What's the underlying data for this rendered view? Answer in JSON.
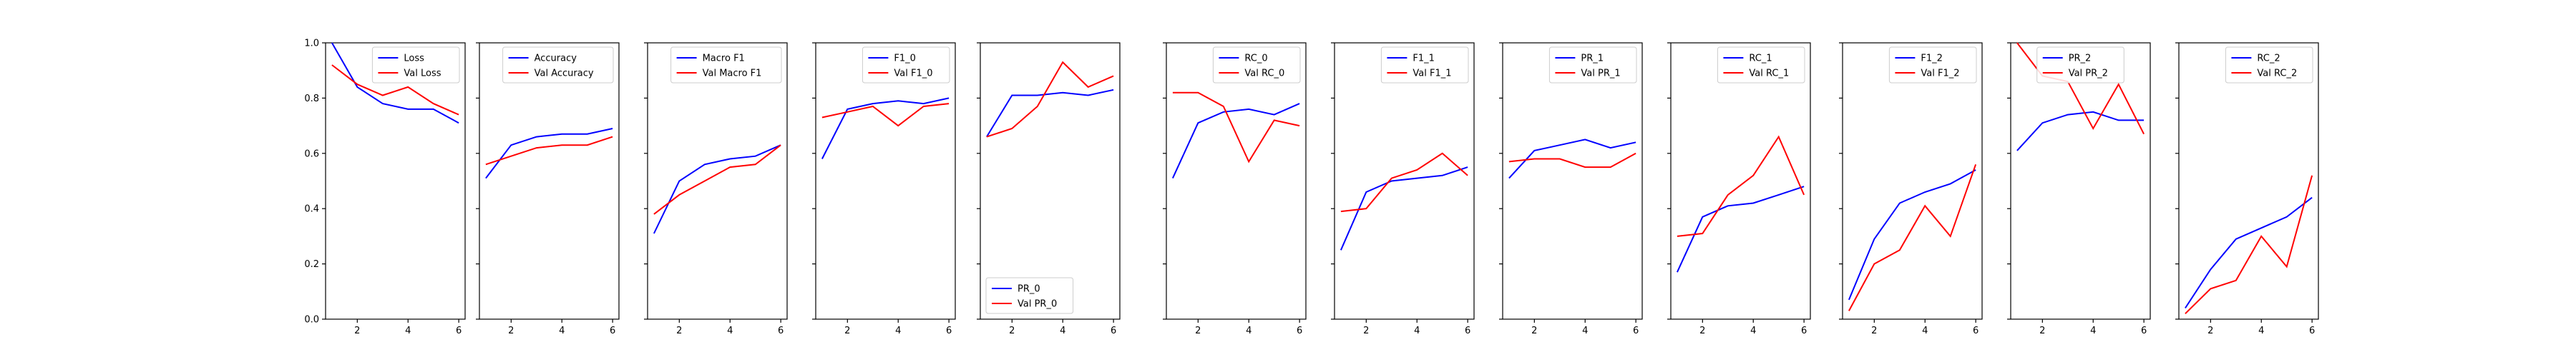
{
  "colors": {
    "train": "#0000ff",
    "val": "#ff0000"
  },
  "chart_data": [
    {
      "type": "line",
      "x": [
        1,
        2,
        3,
        4,
        5,
        6
      ],
      "xticks": [
        2,
        4,
        6
      ],
      "ylim": [
        0,
        1
      ],
      "yticks": [
        "0.0",
        "0.2",
        "0.4",
        "0.6",
        "0.8",
        "1.0"
      ],
      "show_yticks": true,
      "legend_position": "top-right",
      "series": [
        {
          "name": "Loss",
          "values": [
            1.0,
            0.84,
            0.78,
            0.76,
            0.76,
            0.71
          ]
        },
        {
          "name": "Val Loss",
          "values": [
            0.92,
            0.85,
            0.81,
            0.84,
            0.78,
            0.74
          ]
        }
      ]
    },
    {
      "type": "line",
      "x": [
        1,
        2,
        3,
        4,
        5,
        6
      ],
      "xticks": [
        2,
        4,
        6
      ],
      "ylim": [
        0,
        1
      ],
      "yticks": [
        "0.0",
        "0.2",
        "0.4",
        "0.6",
        "0.8",
        "1.0"
      ],
      "show_yticks": false,
      "legend_position": "top-right",
      "series": [
        {
          "name": "Accuracy",
          "values": [
            0.51,
            0.63,
            0.66,
            0.67,
            0.67,
            0.69
          ]
        },
        {
          "name": "Val Accuracy",
          "values": [
            0.56,
            0.59,
            0.62,
            0.63,
            0.63,
            0.66
          ]
        }
      ]
    },
    {
      "type": "line",
      "x": [
        1,
        2,
        3,
        4,
        5,
        6
      ],
      "xticks": [
        2,
        4,
        6
      ],
      "ylim": [
        0,
        1
      ],
      "yticks": [
        "0.0",
        "0.2",
        "0.4",
        "0.6",
        "0.8",
        "1.0"
      ],
      "show_yticks": false,
      "legend_position": "top-right",
      "series": [
        {
          "name": "Macro F1",
          "values": [
            0.31,
            0.5,
            0.56,
            0.58,
            0.59,
            0.63
          ]
        },
        {
          "name": "Val Macro F1",
          "values": [
            0.38,
            0.45,
            0.5,
            0.55,
            0.56,
            0.63
          ]
        }
      ]
    },
    {
      "type": "line",
      "x": [
        1,
        2,
        3,
        4,
        5,
        6
      ],
      "xticks": [
        2,
        4,
        6
      ],
      "ylim": [
        0,
        1
      ],
      "yticks": [
        "0.0",
        "0.2",
        "0.4",
        "0.6",
        "0.8",
        "1.0"
      ],
      "show_yticks": false,
      "legend_position": "top-right",
      "series": [
        {
          "name": "F1_0",
          "values": [
            0.58,
            0.76,
            0.78,
            0.79,
            0.78,
            0.8
          ]
        },
        {
          "name": "Val F1_0",
          "values": [
            0.73,
            0.75,
            0.77,
            0.7,
            0.77,
            0.78
          ]
        }
      ]
    },
    {
      "type": "line",
      "x": [
        1,
        2,
        3,
        4,
        5,
        6
      ],
      "xticks": [
        2,
        4,
        6
      ],
      "ylim": [
        0,
        1
      ],
      "yticks": [
        "0.0",
        "0.2",
        "0.4",
        "0.6",
        "0.8",
        "1.0"
      ],
      "show_yticks": false,
      "legend_position": "bottom-left",
      "series": [
        {
          "name": "PR_0",
          "values": [
            0.66,
            0.81,
            0.81,
            0.82,
            0.81,
            0.83
          ]
        },
        {
          "name": "Val PR_0",
          "values": [
            0.66,
            0.69,
            0.77,
            0.93,
            0.84,
            0.88
          ]
        }
      ]
    },
    {
      "type": "line",
      "x": [
        1,
        2,
        3,
        4,
        5,
        6
      ],
      "xticks": [
        2,
        4,
        6
      ],
      "ylim": [
        0,
        1
      ],
      "yticks": [
        "0.0",
        "0.2",
        "0.4",
        "0.6",
        "0.8",
        "1.0"
      ],
      "show_yticks": false,
      "legend_position": "top-right",
      "series": [
        {
          "name": "RC_0",
          "values": [
            0.51,
            0.71,
            0.75,
            0.76,
            0.74,
            0.78
          ]
        },
        {
          "name": "Val RC_0",
          "values": [
            0.82,
            0.82,
            0.77,
            0.57,
            0.72,
            0.7
          ]
        }
      ]
    },
    {
      "type": "line",
      "x": [
        1,
        2,
        3,
        4,
        5,
        6
      ],
      "xticks": [
        2,
        4,
        6
      ],
      "ylim": [
        0,
        1
      ],
      "yticks": [
        "0.0",
        "0.2",
        "0.4",
        "0.6",
        "0.8",
        "1.0"
      ],
      "show_yticks": false,
      "legend_position": "top-right",
      "series": [
        {
          "name": "F1_1",
          "values": [
            0.25,
            0.46,
            0.5,
            0.51,
            0.52,
            0.55
          ]
        },
        {
          "name": "Val F1_1",
          "values": [
            0.39,
            0.4,
            0.51,
            0.54,
            0.6,
            0.52
          ]
        }
      ]
    },
    {
      "type": "line",
      "x": [
        1,
        2,
        3,
        4,
        5,
        6
      ],
      "xticks": [
        2,
        4,
        6
      ],
      "ylim": [
        0,
        1
      ],
      "yticks": [
        "0.0",
        "0.2",
        "0.4",
        "0.6",
        "0.8",
        "1.0"
      ],
      "show_yticks": false,
      "legend_position": "top-right",
      "series": [
        {
          "name": "PR_1",
          "values": [
            0.51,
            0.61,
            0.63,
            0.65,
            0.62,
            0.64
          ]
        },
        {
          "name": "Val PR_1",
          "values": [
            0.57,
            0.58,
            0.58,
            0.55,
            0.55,
            0.6
          ]
        }
      ]
    },
    {
      "type": "line",
      "x": [
        1,
        2,
        3,
        4,
        5,
        6
      ],
      "xticks": [
        2,
        4,
        6
      ],
      "ylim": [
        0,
        1
      ],
      "yticks": [
        "0.0",
        "0.2",
        "0.4",
        "0.6",
        "0.8",
        "1.0"
      ],
      "show_yticks": false,
      "legend_position": "top-right",
      "series": [
        {
          "name": "RC_1",
          "values": [
            0.17,
            0.37,
            0.41,
            0.42,
            0.45,
            0.48
          ]
        },
        {
          "name": "Val RC_1",
          "values": [
            0.3,
            0.31,
            0.45,
            0.52,
            0.66,
            0.45
          ]
        }
      ]
    },
    {
      "type": "line",
      "x": [
        1,
        2,
        3,
        4,
        5,
        6
      ],
      "xticks": [
        2,
        4,
        6
      ],
      "ylim": [
        0,
        1
      ],
      "yticks": [
        "0.0",
        "0.2",
        "0.4",
        "0.6",
        "0.8",
        "1.0"
      ],
      "show_yticks": false,
      "legend_position": "top-right",
      "series": [
        {
          "name": "F1_2",
          "values": [
            0.07,
            0.29,
            0.42,
            0.46,
            0.49,
            0.54
          ]
        },
        {
          "name": "Val F1_2",
          "values": [
            0.03,
            0.2,
            0.25,
            0.41,
            0.3,
            0.56
          ]
        }
      ]
    },
    {
      "type": "line",
      "x": [
        1,
        2,
        3,
        4,
        5,
        6
      ],
      "xticks": [
        2,
        4,
        6
      ],
      "ylim": [
        0,
        1
      ],
      "yticks": [
        "0.0",
        "0.2",
        "0.4",
        "0.6",
        "0.8",
        "1.0"
      ],
      "show_yticks": false,
      "legend_position": "top-center",
      "series": [
        {
          "name": "PR_2",
          "values": [
            0.61,
            0.71,
            0.74,
            0.75,
            0.72,
            0.72
          ]
        },
        {
          "name": "Val PR_2",
          "values": [
            1.0,
            0.88,
            0.86,
            0.69,
            0.85,
            0.67
          ]
        }
      ]
    },
    {
      "type": "line",
      "x": [
        1,
        2,
        3,
        4,
        5,
        6
      ],
      "xticks": [
        2,
        4,
        6
      ],
      "ylim": [
        0,
        1
      ],
      "yticks": [
        "0.0",
        "0.2",
        "0.4",
        "0.6",
        "0.8",
        "1.0"
      ],
      "show_yticks": false,
      "legend_position": "top-right",
      "series": [
        {
          "name": "RC_2",
          "values": [
            0.04,
            0.18,
            0.29,
            0.33,
            0.37,
            0.44
          ]
        },
        {
          "name": "Val RC_2",
          "values": [
            0.02,
            0.11,
            0.14,
            0.3,
            0.19,
            0.52
          ]
        }
      ]
    }
  ]
}
